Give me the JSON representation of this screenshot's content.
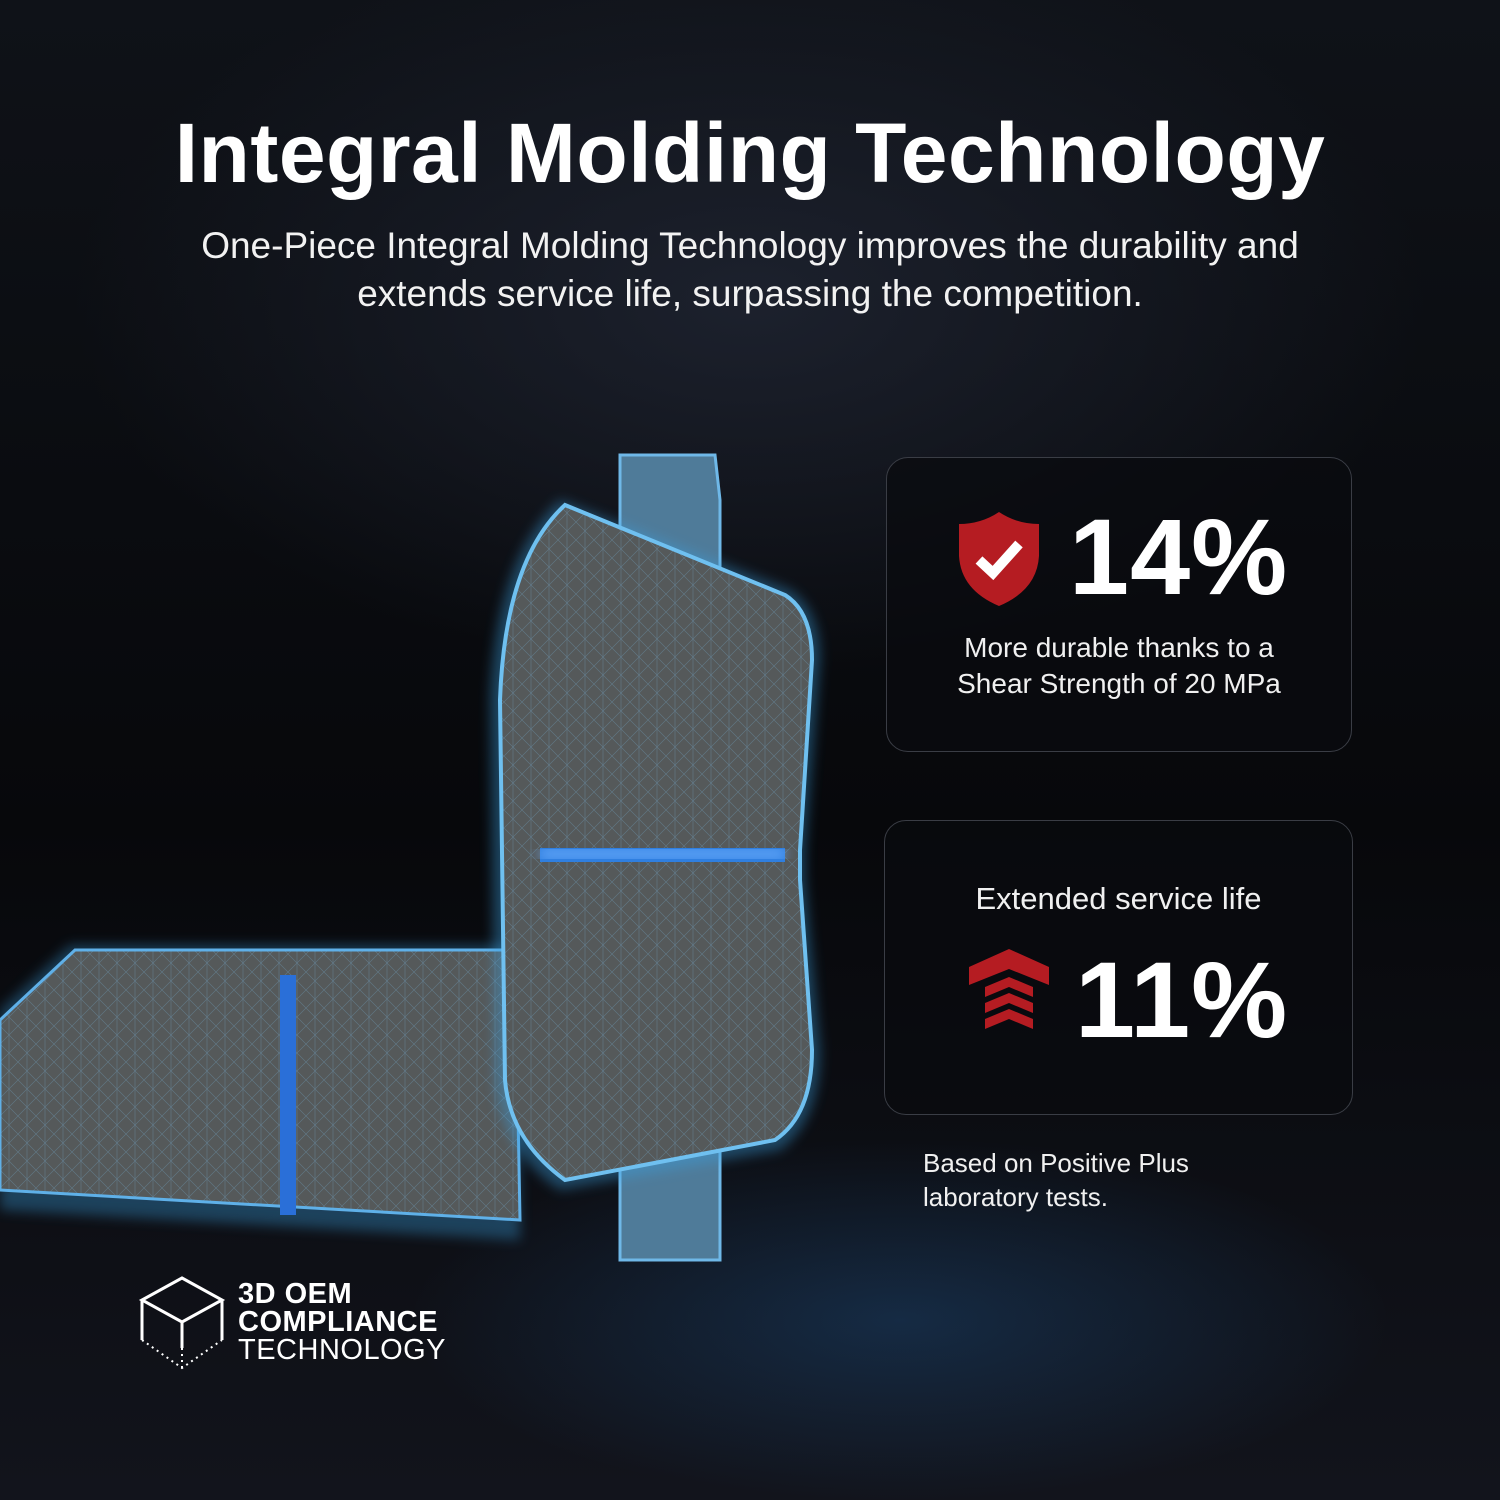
{
  "header": {
    "title": "Integral Molding Technology",
    "subtitle": "One-Piece Integral Molding Technology improves the durability and extends service life, surpassing the competition."
  },
  "cards": [
    {
      "icon": "shield-check-icon",
      "value": "14%",
      "description_line1": "More durable thanks to a",
      "description_line2": "Shear Strength of 20 MPa"
    },
    {
      "icon": "chevron-arrows-up-icon",
      "label": "Extended service life",
      "value": "11%"
    }
  ],
  "footnote": {
    "line1": "Based on Positive Plus",
    "line2": "laboratory tests."
  },
  "logo": {
    "line1": "3D OEM",
    "line2": "COMPLIANCE",
    "line3": "TECHNOLOGY",
    "icon": "cube-icon"
  },
  "colors": {
    "accent_red": "#b51c22",
    "glow_blue": "#2f7fe0",
    "background": "#0b0d12"
  }
}
